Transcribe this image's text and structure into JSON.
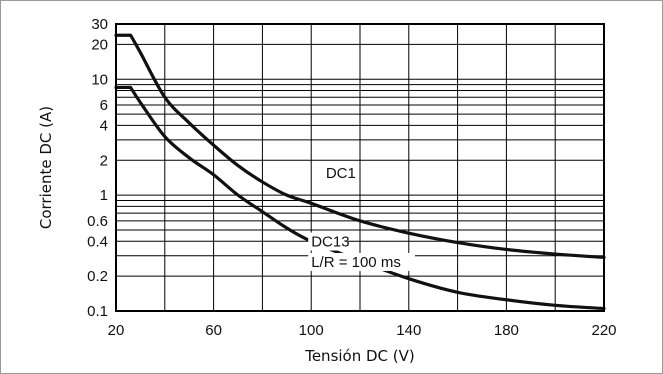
{
  "chart_data": {
    "type": "line",
    "xlabel": "Tensión DC (V)",
    "ylabel": "Corriente DC (A)",
    "xlim": [
      20,
      220
    ],
    "ylim": [
      0.1,
      30
    ],
    "y_scale": "log",
    "x_ticks": [
      20,
      60,
      100,
      140,
      180,
      220
    ],
    "x_minor_ticks": [
      40,
      80,
      120,
      160,
      200
    ],
    "y_ticks": [
      0.1,
      0.2,
      0.4,
      0.6,
      1,
      2,
      4,
      6,
      10,
      20,
      30
    ],
    "y_tick_labels": [
      "0.1",
      "0.2",
      "0.4",
      "0.6",
      "1",
      "2",
      "4",
      "6",
      "10",
      "20",
      "30"
    ],
    "y_grid": [
      0.1,
      0.2,
      0.3,
      0.4,
      0.5,
      0.6,
      0.7,
      0.8,
      0.9,
      1,
      2,
      3,
      4,
      5,
      6,
      7,
      8,
      9,
      10,
      20,
      30
    ],
    "grid": true,
    "series": [
      {
        "name": "DC1",
        "x": [
          20,
          26,
          30,
          40,
          50,
          60,
          70,
          80,
          90,
          100,
          120,
          140,
          160,
          180,
          200,
          220
        ],
        "y": [
          24,
          24,
          17,
          7,
          4.2,
          2.7,
          1.8,
          1.3,
          1.0,
          0.85,
          0.6,
          0.47,
          0.39,
          0.34,
          0.31,
          0.29
        ]
      },
      {
        "name": "DC13",
        "x": [
          20,
          26,
          30,
          40,
          50,
          60,
          70,
          80,
          90,
          100,
          120,
          140,
          160,
          180,
          200,
          220
        ],
        "y": [
          8.5,
          8.5,
          6.3,
          3.2,
          2.1,
          1.5,
          1.0,
          0.72,
          0.52,
          0.4,
          0.27,
          0.19,
          0.145,
          0.125,
          0.112,
          0.105
        ]
      }
    ],
    "annotations": [
      {
        "text": "DC1",
        "x": 106,
        "y": 1.4
      },
      {
        "text": "DC13",
        "x": 100,
        "y": 0.36
      },
      {
        "text": "L/R = 100 ms",
        "x": 100,
        "y": 0.24
      }
    ]
  }
}
